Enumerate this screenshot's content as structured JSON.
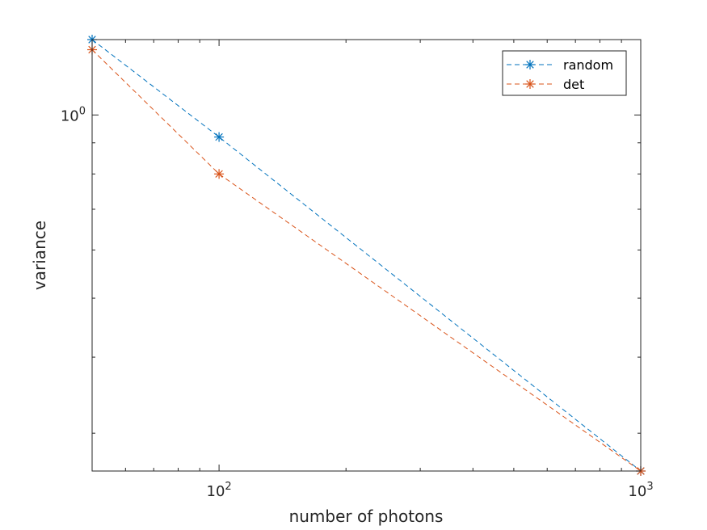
{
  "chart_data": {
    "type": "line",
    "title": "",
    "xlabel": "number of photons",
    "ylabel": "variance",
    "xscale": "log",
    "yscale": "log",
    "xlim": [
      50,
      1000
    ],
    "ylim": [
      0.26,
      1.33
    ],
    "x_ticks": [
      {
        "base": "10",
        "exp": "2",
        "value": 100
      },
      {
        "base": "10",
        "exp": "3",
        "value": 1000
      }
    ],
    "y_ticks": [
      {
        "base": "10",
        "exp": "0",
        "value": 1
      }
    ],
    "grid": false,
    "legend_position": "top-right",
    "series": [
      {
        "name": "random",
        "color": "#0072BD",
        "line_style": "dashed",
        "marker": "asterisk",
        "x": [
          50,
          100,
          1000
        ],
        "y": [
          1.33,
          0.92,
          0.26
        ]
      },
      {
        "name": "det",
        "color": "#D95319",
        "line_style": "dashed",
        "marker": "asterisk",
        "x": [
          50,
          100,
          1000
        ],
        "y": [
          1.28,
          0.8,
          0.26
        ]
      }
    ]
  }
}
